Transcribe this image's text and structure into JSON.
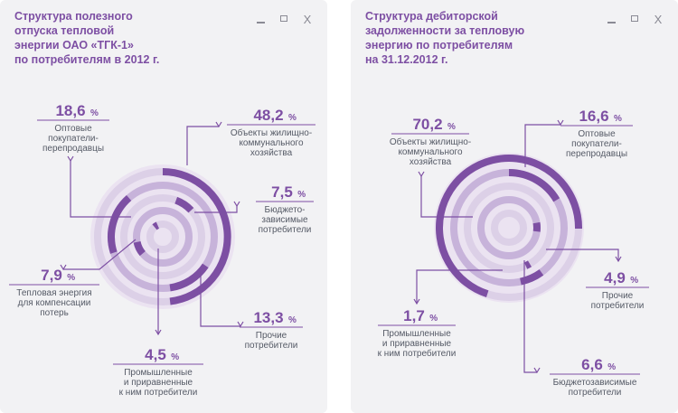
{
  "colors": {
    "accent": "#7d4fa3",
    "ring_light": "#dcd0e7",
    "ring_mid": "#c7b3da",
    "background_disc": "#ebe3f1",
    "text": "#555a66",
    "panel_bg": "#f2f2f4"
  },
  "window_controls": {
    "minimize_icon": "minimize-icon",
    "restore_icon": "restore-icon",
    "close_label": "X"
  },
  "chart_data": [
    {
      "type": "pie",
      "title": "Структура полезного\nотпуска тепловой\nэнергии  ОАО «ТГК-1»\nпо потребителям в 2012 г.",
      "unit": "%",
      "slices": [
        {
          "value": "18,6",
          "label": [
            "Оптовые",
            "покупатели-",
            "перепродавцы"
          ]
        },
        {
          "value": "48,2",
          "label": [
            "Объекты жилищно-",
            "коммунального",
            "хозяйства"
          ]
        },
        {
          "value": "7,5",
          "label": [
            "Бюджето-",
            "зависимые",
            "потребители"
          ]
        },
        {
          "value": "13,3",
          "label": [
            "Прочие",
            "потребители"
          ]
        },
        {
          "value": "4,5",
          "label": [
            "Промышленные",
            "и приравненные",
            "к ним потребители"
          ]
        },
        {
          "value": "7,9",
          "label": [
            "Тепловая энергия",
            "для компенсации",
            "потерь"
          ]
        }
      ]
    },
    {
      "type": "pie",
      "title": "Структура дебиторской\nзадолженности за тепловую\nэнергию по потребителям\nна 31.12.2012 г.",
      "unit": "%",
      "slices": [
        {
          "value": "70,2",
          "label": [
            "Объекты жилищно-",
            "коммунального",
            "хозяйства"
          ]
        },
        {
          "value": "16,6",
          "label": [
            "Оптовые",
            "покупатели-",
            "перепродавцы"
          ]
        },
        {
          "value": "4,9",
          "label": [
            "Прочие",
            "потребители"
          ]
        },
        {
          "value": "1,7",
          "label": [
            "Промышленные",
            "и приравненные",
            "к ним потребители"
          ]
        },
        {
          "value": "6,6",
          "label": [
            "Бюджетозависимые",
            "потребители"
          ]
        }
      ]
    }
  ]
}
